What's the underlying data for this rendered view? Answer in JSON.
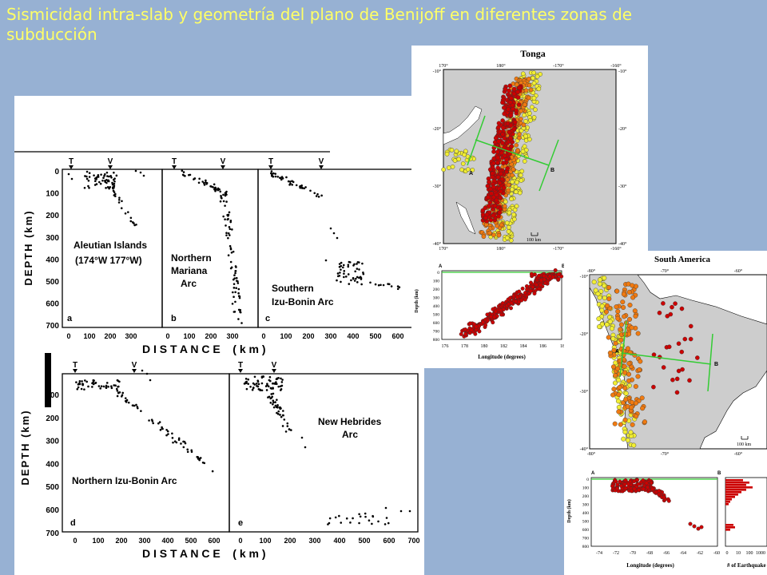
{
  "title": "Sismicidad intra-slab  y geometría del plano de Benijoff en diferentes zonas de subducción",
  "left_figure": {
    "markers": {
      "trench": "T",
      "volcanic": "V"
    },
    "top_row": {
      "depth_ticks": [
        "0",
        "100",
        "200",
        "300",
        "400",
        "500",
        "600",
        "700"
      ],
      "depth_label": "DEPTH (km)",
      "distance_label": "D I S T A N C E    ( k m )",
      "subpanels": [
        {
          "letter": "a",
          "label_lines": [
            "Aleutian Islands",
            "(174°W  177°W)"
          ],
          "x_ticks": [
            "0",
            "100",
            "200",
            "300"
          ]
        },
        {
          "letter": "b",
          "label_lines": [
            "Northern",
            "Mariana",
            "Arc"
          ],
          "x_ticks": [
            "0",
            "100",
            "200",
            "300"
          ]
        },
        {
          "letter": "c",
          "label_lines": [
            "Southern",
            "Izu-Bonin Arc"
          ],
          "x_ticks": [
            "0",
            "100",
            "200",
            "300",
            "400",
            "500",
            "600"
          ]
        }
      ]
    },
    "bottom_row": {
      "depth_ticks": [
        "00",
        "200",
        "300",
        "400",
        "500",
        "600",
        "700"
      ],
      "depth_label": "DEPTH (km)",
      "distance_label": "D I S T A N C E    ( k m )",
      "subpanels": [
        {
          "letter": "d",
          "label_lines": [
            "Northern Izu-Bonin Arc"
          ],
          "x_ticks": [
            "0",
            "100",
            "200",
            "300",
            "400",
            "500",
            "600"
          ]
        },
        {
          "letter": "e",
          "label_lines": [
            "New Hebrides",
            "Arc"
          ],
          "x_ticks": [
            "0",
            "100",
            "200",
            "300",
            "400",
            "500",
            "600",
            "700"
          ]
        }
      ]
    }
  },
  "tonga": {
    "title": "Tonga",
    "top_lon_ticks": [
      "170°",
      "180°",
      "-170°",
      "-160°"
    ],
    "bottom_lon_ticks": [
      "170°",
      "180°",
      "-170°",
      "-160°"
    ],
    "lat_ticks": [
      "-10°",
      "-20°",
      "-30°",
      "-40°"
    ],
    "scale": "100 km",
    "profile_a": "A",
    "profile_b": "B",
    "section": {
      "ylabel": "Depth (km)",
      "xlabel": "Longitude (degrees)",
      "depth_ticks": [
        "0",
        "100",
        "200",
        "300",
        "400",
        "500",
        "600",
        "700",
        "800"
      ],
      "lon_ticks": [
        "176",
        "178",
        "180",
        "182",
        "184",
        "186",
        "18"
      ]
    }
  },
  "south_america": {
    "title": "South America",
    "top_lon_ticks": [
      "-80°",
      "-70°",
      "-60°"
    ],
    "bottom_lon_ticks": [
      "-80°",
      "-70°",
      "-60°"
    ],
    "lat_ticks": [
      "-10°",
      "-20°",
      "-30°",
      "-40°"
    ],
    "scale": "100 km",
    "profile_a": "A",
    "profile_b": "B",
    "section": {
      "ylabel": "Depth (km)",
      "xlabel": "Longitude (degrees)",
      "depth_ticks": [
        "0",
        "100",
        "200",
        "300",
        "400",
        "500",
        "600",
        "700",
        "800"
      ],
      "lon_ticks": [
        "-74",
        "-72",
        "-70",
        "-68",
        "-66",
        "-64",
        "-62",
        "-60"
      ]
    },
    "histogram": {
      "xlabel": "# of Earthquake",
      "x_ticks": [
        "0",
        "10",
        "100",
        "1000"
      ]
    }
  },
  "colors": {
    "title": "#ffff66",
    "background": "#97b1d3",
    "profile_line": "#33cc33",
    "quake_deep": "#cc0000",
    "quake_mid": "#f07a10",
    "quake_shallow": "#f2ee33"
  }
}
